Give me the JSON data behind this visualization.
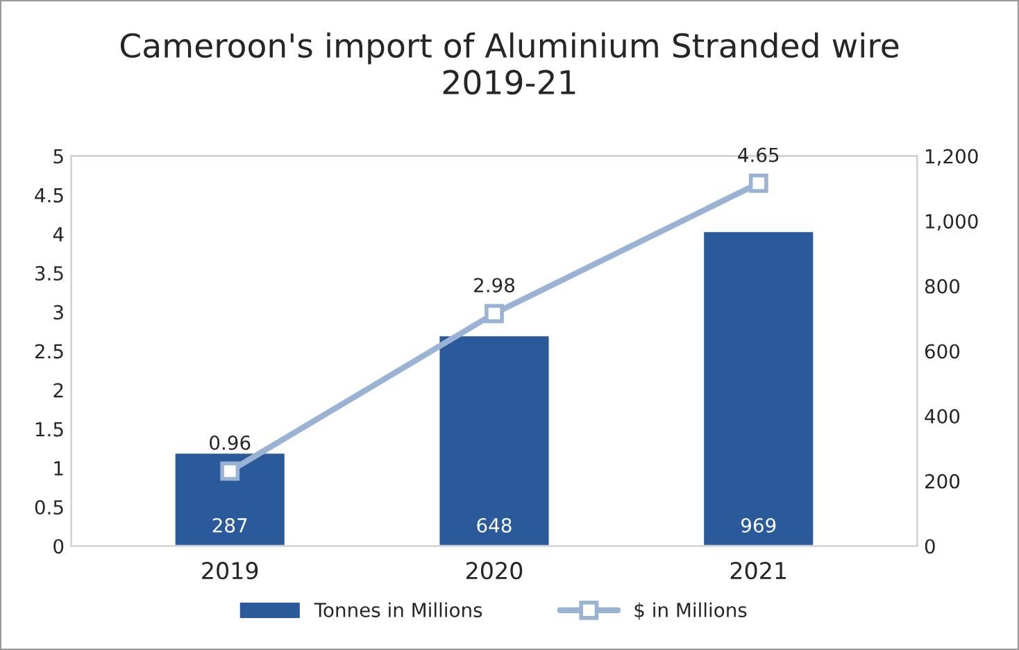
{
  "chart_data": {
    "type": "bar",
    "title": "Cameroon's import of Aluminium Stranded wire\n2019-21",
    "categories": [
      "2019",
      "2020",
      "2021"
    ],
    "series": [
      {
        "name": "Tonnes in Millions",
        "color": "#2a5a9a",
        "values": [
          287,
          648,
          969
        ],
        "axis": "y2"
      },
      {
        "name": "$ in Millions",
        "type": "line",
        "color": "#9ab3d5",
        "values": [
          0.96,
          2.98,
          4.65
        ],
        "marker": "square"
      }
    ],
    "ylim": [
      0,
      5
    ],
    "yticks": [
      0,
      0.5,
      1,
      1.5,
      2,
      2.5,
      3,
      3.5,
      4,
      4.5,
      5
    ],
    "y2lim": [
      0,
      1200
    ],
    "y2ticks": [
      0,
      200,
      400,
      600,
      800,
      {
        "value": 1000,
        "label": "1,000"
      },
      {
        "value": 1200,
        "label": "1,200"
      }
    ],
    "data_labels": true,
    "legend": "bottom",
    "grid": false
  }
}
